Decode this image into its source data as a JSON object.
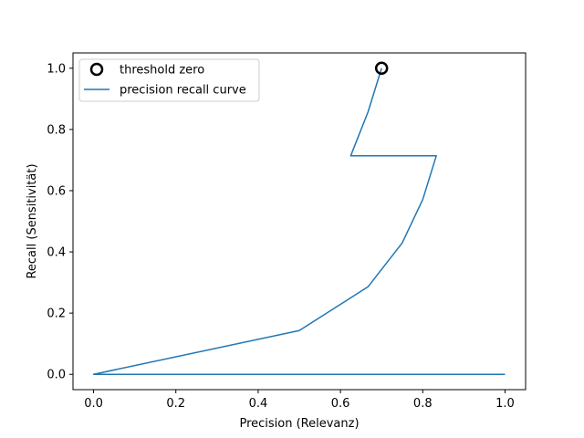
{
  "chart_data": {
    "type": "line",
    "title": "",
    "xlabel": "Precision (Relevanz)",
    "ylabel": "Recall (Sensitivität)",
    "xlim": [
      -0.05,
      1.05
    ],
    "ylim": [
      -0.05,
      1.05
    ],
    "xticks": [
      0.0,
      0.2,
      0.4,
      0.6,
      0.8,
      1.0
    ],
    "yticks": [
      0.0,
      0.2,
      0.4,
      0.6,
      0.8,
      1.0
    ],
    "xtick_labels": [
      "0.0",
      "0.2",
      "0.4",
      "0.6",
      "0.8",
      "1.0"
    ],
    "ytick_labels": [
      "0.0",
      "0.2",
      "0.4",
      "0.6",
      "0.8",
      "1.0"
    ],
    "grid": false,
    "legend_position": "top-left",
    "series": [
      {
        "name": "precision recall curve",
        "color": "#1f77b4",
        "x": [
          1.0,
          0.0,
          0.5,
          0.667,
          0.75,
          0.8,
          0.833,
          0.625,
          0.667,
          0.7
        ],
        "y": [
          0.0,
          0.0,
          0.143,
          0.286,
          0.429,
          0.571,
          0.714,
          0.714,
          0.857,
          1.0
        ]
      }
    ],
    "markers": [
      {
        "name": "threshold zero",
        "x": 0.7,
        "y": 1.0,
        "shape": "open-circle",
        "color": "#000000"
      }
    ]
  }
}
